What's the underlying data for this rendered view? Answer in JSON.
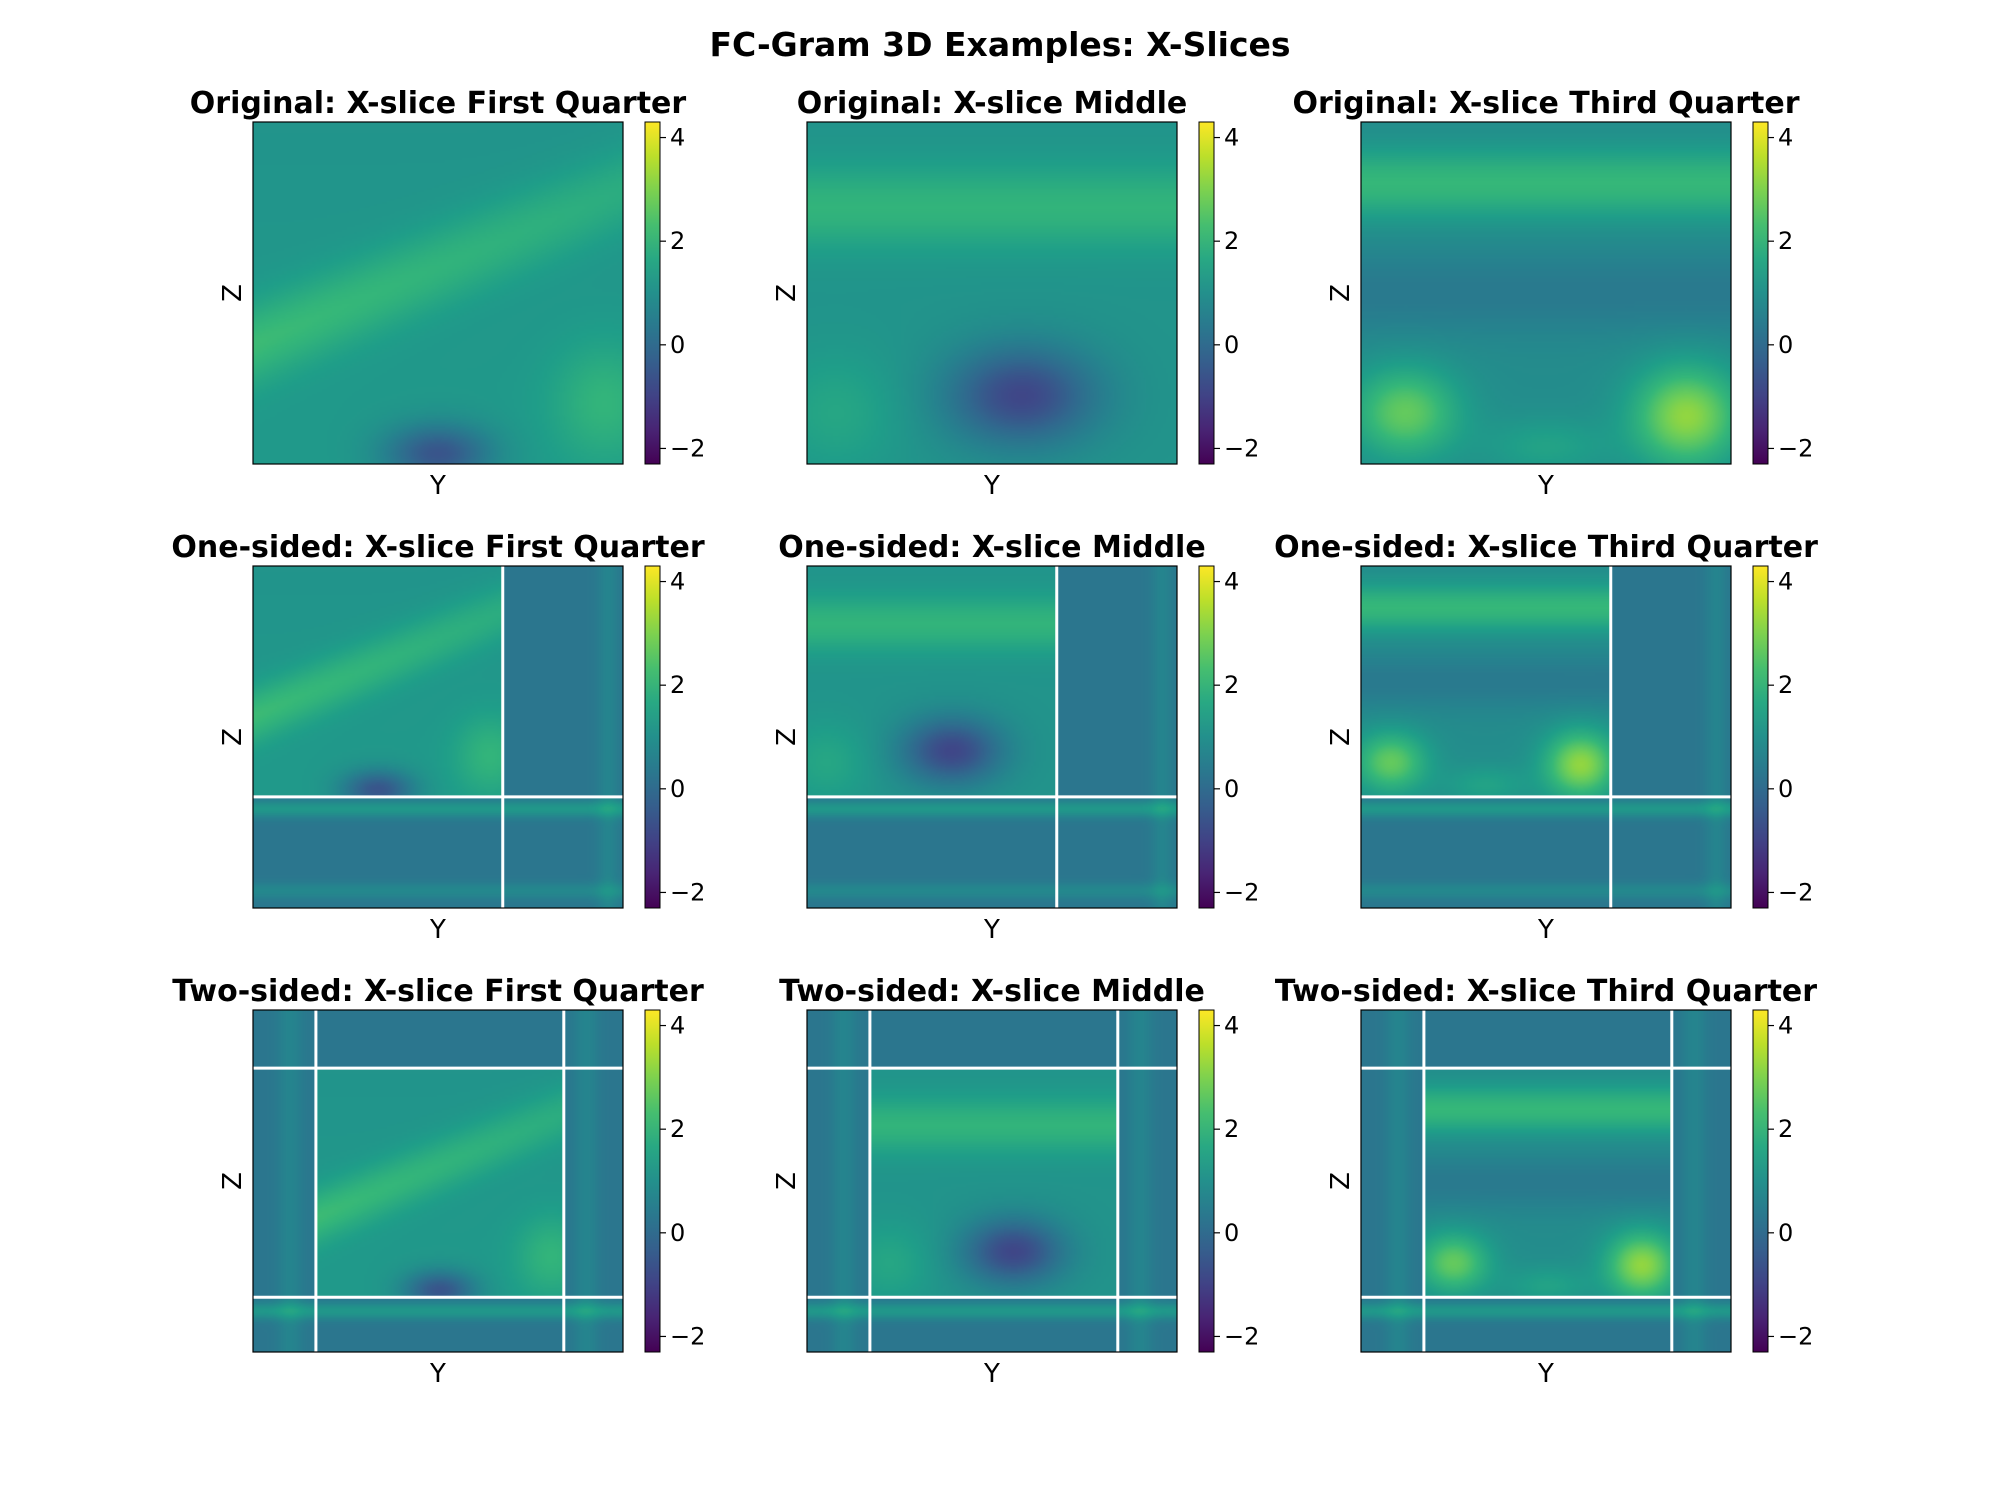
{
  "figure": {
    "title": "FC-Gram 3D Examples: X-Slices"
  },
  "colorbar": {
    "colormap": "viridis",
    "vmin": -2.3,
    "vmax": 4.3,
    "ticks": [
      -2,
      0,
      2,
      4
    ],
    "tick_labels": [
      "−2",
      "0",
      "2",
      "4"
    ]
  },
  "chart_data": [
    {
      "type": "heatmap",
      "title": "Original: X-slice First Quarter",
      "xlabel": "Y",
      "ylabel": "Z",
      "variant": "original",
      "slice": "first-quarter",
      "extension": "none"
    },
    {
      "type": "heatmap",
      "title": "Original: X-slice Middle",
      "xlabel": "Y",
      "ylabel": "Z",
      "variant": "original",
      "slice": "middle",
      "extension": "none"
    },
    {
      "type": "heatmap",
      "title": "Original: X-slice Third Quarter",
      "xlabel": "Y",
      "ylabel": "Z",
      "variant": "original",
      "slice": "third-quarter",
      "extension": "none"
    },
    {
      "type": "heatmap",
      "title": "One-sided: X-slice First Quarter",
      "xlabel": "Y",
      "ylabel": "Z",
      "variant": "one-sided",
      "slice": "first-quarter",
      "extension": "one-sided"
    },
    {
      "type": "heatmap",
      "title": "One-sided: X-slice Middle",
      "xlabel": "Y",
      "ylabel": "Z",
      "variant": "one-sided",
      "slice": "middle",
      "extension": "one-sided"
    },
    {
      "type": "heatmap",
      "title": "One-sided: X-slice Third Quarter",
      "xlabel": "Y",
      "ylabel": "Z",
      "variant": "one-sided",
      "slice": "third-quarter",
      "extension": "one-sided"
    },
    {
      "type": "heatmap",
      "title": "Two-sided: X-slice First Quarter",
      "xlabel": "Y",
      "ylabel": "Z",
      "variant": "two-sided",
      "slice": "first-quarter",
      "extension": "two-sided"
    },
    {
      "type": "heatmap",
      "title": "Two-sided: X-slice Middle",
      "xlabel": "Y",
      "ylabel": "Z",
      "variant": "two-sided",
      "slice": "middle",
      "extension": "two-sided"
    },
    {
      "type": "heatmap",
      "title": "Two-sided: X-slice Third Quarter",
      "xlabel": "Y",
      "ylabel": "Z",
      "variant": "two-sided",
      "slice": "third-quarter",
      "extension": "two-sided"
    }
  ]
}
